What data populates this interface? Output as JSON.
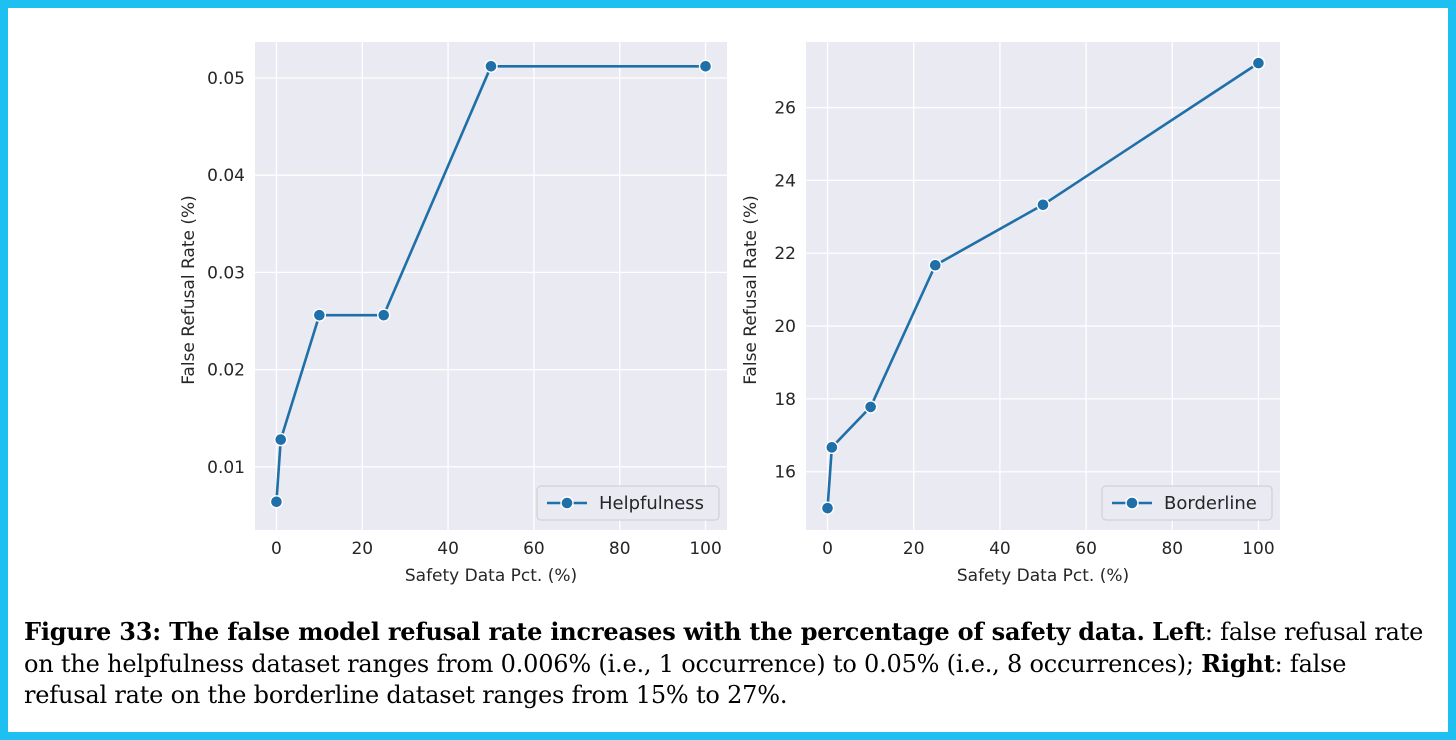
{
  "colors": {
    "plot_bg": "#eaeaf2",
    "grid": "#ffffff",
    "line": "#1f6fa8",
    "marker_edge": "#ffffff",
    "frame_border": "#1ec0f2"
  },
  "chart_data": [
    {
      "type": "line",
      "xlabel": "Safety Data Pct. (%)",
      "ylabel": "False Refusal Rate (%)",
      "legend": "Helpfulness",
      "legend_position": "lower-right",
      "grid": true,
      "xlim": [
        -5,
        105
      ],
      "ylim": [
        0.0035,
        0.0537
      ],
      "xticks": [
        0,
        20,
        40,
        60,
        80,
        100
      ],
      "xtick_labels": [
        "0",
        "20",
        "40",
        "60",
        "80",
        "100"
      ],
      "yticks": [
        0.01,
        0.02,
        0.03,
        0.04,
        0.05
      ],
      "ytick_labels": [
        "0.01",
        "0.02",
        "0.03",
        "0.04",
        "0.05"
      ],
      "x": [
        0,
        1,
        10,
        25,
        50,
        100
      ],
      "y": [
        0.0064,
        0.0128,
        0.0256,
        0.0256,
        0.0512,
        0.0512
      ]
    },
    {
      "type": "line",
      "xlabel": "Safety Data Pct. (%)",
      "ylabel": "False Refusal Rate (%)",
      "legend": "Borderline",
      "legend_position": "lower-right",
      "grid": true,
      "xlim": [
        -5,
        105
      ],
      "ylim": [
        14.4,
        27.8
      ],
      "xticks": [
        0,
        20,
        40,
        60,
        80,
        100
      ],
      "xtick_labels": [
        "0",
        "20",
        "40",
        "60",
        "80",
        "100"
      ],
      "yticks": [
        16,
        18,
        20,
        22,
        24,
        26
      ],
      "ytick_labels": [
        "16",
        "18",
        "20",
        "22",
        "24",
        "26"
      ],
      "x": [
        0,
        1,
        10,
        25,
        50,
        100
      ],
      "y": [
        15.0,
        16.67,
        17.78,
        21.67,
        23.33,
        27.22
      ]
    }
  ],
  "caption": {
    "label": "Figure 33: The false model refusal rate increases with the percentage of safety data.",
    "left_label": "Left",
    "left_text": ": false refusal rate on the helpfulness dataset ranges from 0.006% (i.e., 1 occurrence) to 0.05% (i.e., 8 occurrences); ",
    "right_label": "Right",
    "right_text": ": false refusal rate on the borderline dataset ranges from 15% to 27%."
  }
}
